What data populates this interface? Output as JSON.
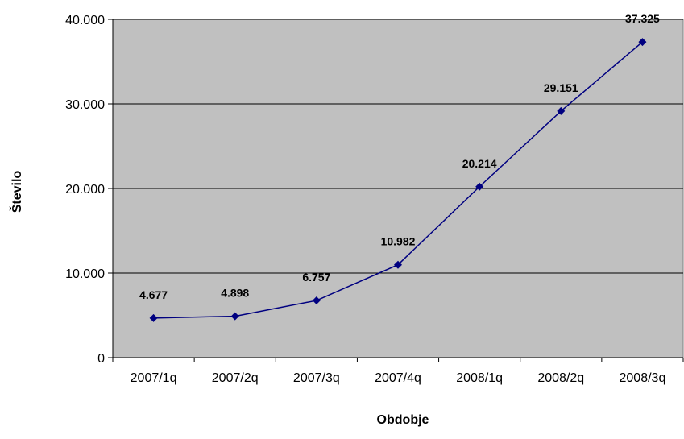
{
  "chart_data": {
    "type": "line",
    "title": "",
    "xlabel": "Obdobje",
    "ylabel": "Število",
    "categories": [
      "2007/1q",
      "2007/2q",
      "2007/3q",
      "2007/4q",
      "2008/1q",
      "2008/2q",
      "2008/3q"
    ],
    "values": [
      4677,
      4898,
      6757,
      10982,
      20214,
      29151,
      37325
    ],
    "data_labels": [
      "4.677",
      "4.898",
      "6.757",
      "10.982",
      "20.214",
      "29.151",
      "37.325"
    ],
    "ylim": [
      0,
      40000
    ],
    "yticks": [
      0,
      10000,
      20000,
      30000,
      40000
    ],
    "ytick_labels": [
      "0",
      "10.000",
      "20.000",
      "30.000",
      "40.000"
    ],
    "grid": true,
    "legend": "none",
    "colors": {
      "plot_background": "#c0c0c0",
      "line": "#000080",
      "marker": "#000080",
      "gridline": "#000000"
    }
  }
}
